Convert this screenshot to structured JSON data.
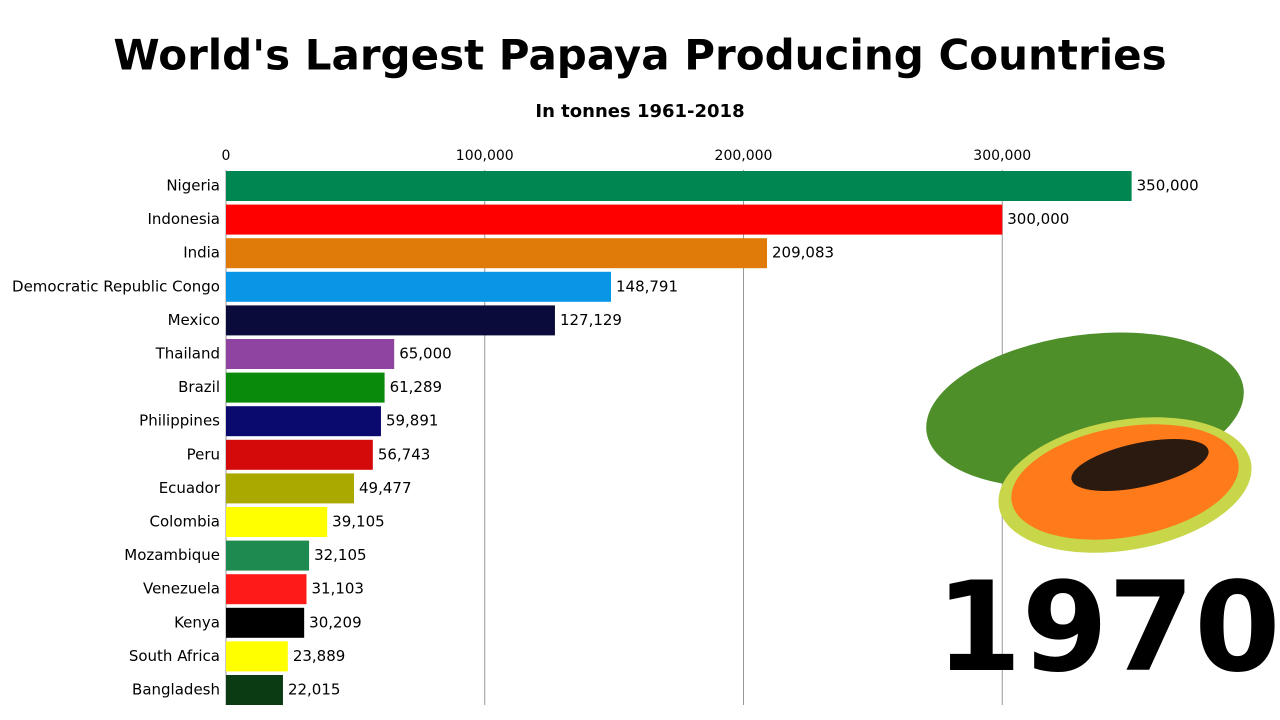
{
  "chart_data": {
    "type": "barh",
    "title": "World's Largest Papaya Producing Countries",
    "subtitle": "In tonnes 1961-2018",
    "year_label": "1970",
    "categories": [
      "Nigeria",
      "Indonesia",
      "India",
      "Democratic Republic Congo",
      "Mexico",
      "Thailand",
      "Brazil",
      "Philippines",
      "Peru",
      "Ecuador",
      "Colombia",
      "Mozambique",
      "Venezuela",
      "Kenya",
      "South Africa",
      "Bangladesh"
    ],
    "values": [
      350000,
      300000,
      209083,
      148791,
      127129,
      65000,
      61289,
      59891,
      56743,
      49477,
      39105,
      32105,
      31103,
      30209,
      23889,
      22015
    ],
    "value_labels": [
      "350,000",
      "300,000",
      "209,083",
      "148,791",
      "127,129",
      "65,000",
      "61,289",
      "59,891",
      "56,743",
      "49,477",
      "39,105",
      "32,105",
      "31,103",
      "30,209",
      "23,889",
      "22,015"
    ],
    "colors": [
      "#008751",
      "#ff0000",
      "#e07b0a",
      "#0a96e6",
      "#0b0b3b",
      "#8e44a0",
      "#0a8a0a",
      "#0a0a6e",
      "#d40a0a",
      "#a9a900",
      "#ffff00",
      "#1f8a50",
      "#ff1a1a",
      "#000000",
      "#ffff00",
      "#0b3b12"
    ],
    "xlim": [
      0,
      400000
    ],
    "xticks": [
      0,
      {
        "value": 100000,
        "label": "100,000"
      },
      {
        "value": 200000,
        "label": "200,000"
      },
      {
        "value": 300000,
        "label": "300,000"
      }
    ],
    "grid": true
  }
}
